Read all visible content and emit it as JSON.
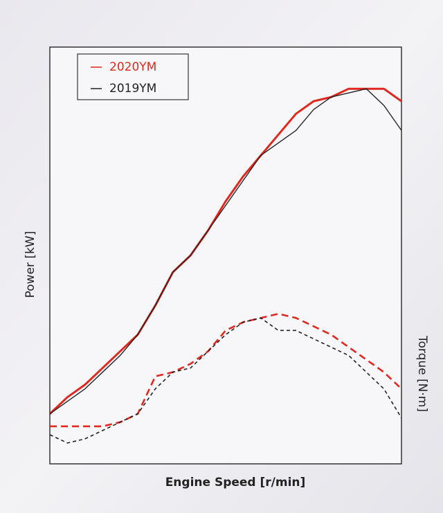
{
  "chart_data": {
    "type": "line",
    "xlabel": "Engine Speed [r/min]",
    "ylabel": "Power [kW]",
    "y2label": "Torque [N·m]",
    "x": [
      0,
      5,
      10,
      15,
      20,
      25,
      30,
      35,
      40,
      45,
      50,
      55,
      60,
      65,
      70,
      75,
      80,
      85,
      90,
      95,
      100
    ],
    "xlim": [
      0,
      100
    ],
    "ylim": [
      0,
      100
    ],
    "y2lim": [
      0,
      100
    ],
    "legend": "upper left",
    "series": [
      {
        "name": "2020YM",
        "color": "#e0281e",
        "values": [
          12,
          16,
          19,
          23,
          27,
          31,
          38,
          46,
          50,
          56,
          63,
          69,
          74,
          79,
          84,
          87,
          88,
          90,
          90,
          90,
          87
        ],
        "torque": [
          9,
          9,
          9,
          9,
          10,
          12,
          21,
          22,
          24,
          27,
          32,
          34,
          35,
          36,
          35,
          33,
          31,
          28,
          25,
          22,
          18
        ]
      },
      {
        "name": "2019YM",
        "color": "#222222",
        "values": [
          12,
          15,
          18,
          22,
          26,
          31,
          38,
          46,
          50,
          56,
          62,
          68,
          74,
          77,
          80,
          85,
          88,
          89,
          90,
          86,
          80
        ],
        "torque": [
          7,
          5,
          6,
          8,
          10,
          12,
          18,
          22,
          23,
          27,
          31,
          34,
          35,
          32,
          32,
          30,
          28,
          26,
          22,
          18,
          11
        ]
      }
    ]
  }
}
